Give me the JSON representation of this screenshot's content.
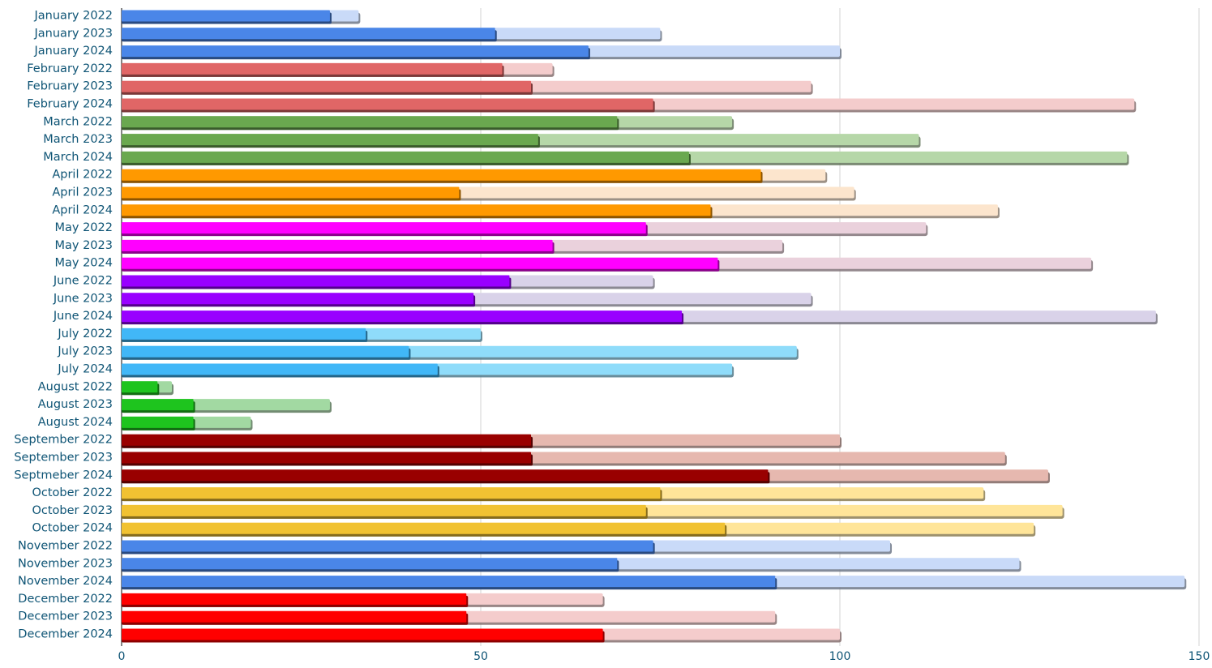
{
  "chart_data": {
    "type": "bar",
    "orientation": "horizontal",
    "stacked": true,
    "categories": [
      "January 2022",
      "January 2023",
      "January 2024",
      "February 2022",
      "February 2023",
      "February 2024",
      "March 2022",
      "March 2023",
      "March 2024",
      "April 2022",
      "April 2023",
      "April 2024",
      "May 2022",
      "May 2023",
      "May 2024",
      "June 2022",
      "June 2023",
      "June 2024",
      "July 2022",
      "July 2023",
      "July 2024",
      "August 2022",
      "August 2023",
      "August 2024",
      "September 2022",
      "September 2023",
      "Septmeber 2024",
      "October 2022",
      "October 2023",
      "October 2024",
      "November 2022",
      "November 2023",
      "November 2024",
      "December 2022",
      "December 2023",
      "December 2024"
    ],
    "series": [
      {
        "values": [
          29,
          52,
          65,
          53,
          57,
          74,
          69,
          58,
          79,
          89,
          47,
          82,
          73,
          60,
          83,
          54,
          49,
          78,
          34,
          40,
          44,
          5,
          10,
          10,
          57,
          57,
          90,
          75,
          73,
          84,
          74,
          69,
          91,
          48,
          48,
          67
        ]
      },
      {
        "values": [
          4,
          23,
          35,
          7,
          39,
          67,
          16,
          53,
          61,
          9,
          55,
          40,
          39,
          32,
          52,
          20,
          47,
          66,
          16,
          54,
          41,
          2,
          19,
          8,
          43,
          66,
          39,
          45,
          58,
          43,
          33,
          56,
          57,
          19,
          43,
          33
        ]
      }
    ],
    "colors": {
      "actual": [
        "#4a86e8",
        "#e06666",
        "#6aa84f",
        "#ff9900",
        "#ff00ff",
        "#9900ff",
        "#41b7f7",
        "#1ec41e",
        "#990000",
        "#f1c232",
        "#4a86e8",
        "#ff0000"
      ],
      "remaining": [
        "#c9daf8",
        "#f4cccc",
        "#b6d7a8",
        "#fce5cd",
        "#ead1dc",
        "#d9d2e9",
        "#8fdcfa",
        "#a2d9a2",
        "#e6b8af",
        "#ffe599",
        "#c9daf8",
        "#f4cccc"
      ]
    },
    "xlim": [
      0,
      150
    ],
    "xticks": [
      0,
      50,
      100,
      150
    ],
    "grid": true,
    "legend": "none",
    "title": "",
    "xlabel": "",
    "ylabel": ""
  }
}
